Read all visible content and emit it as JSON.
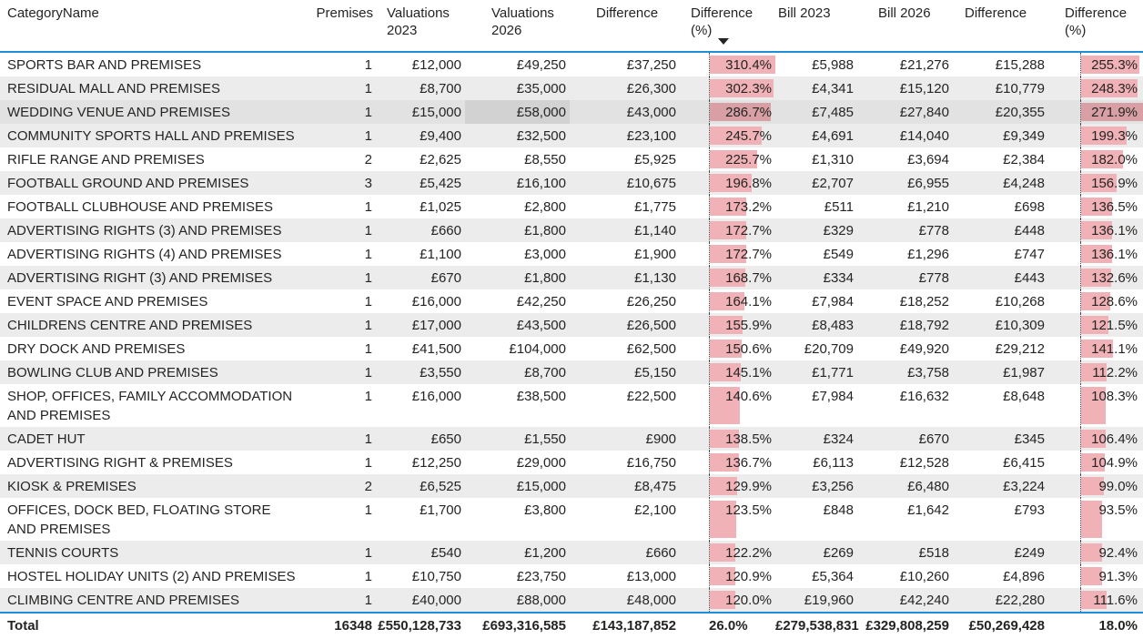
{
  "columns": [
    {
      "key": "category",
      "label": "CategoryName"
    },
    {
      "key": "premises",
      "label": "Premises"
    },
    {
      "key": "val2023",
      "label": "Valuations 2023"
    },
    {
      "key": "val2026",
      "label": "Valuations 2026"
    },
    {
      "key": "diff",
      "label": "Difference"
    },
    {
      "key": "diffPct",
      "label": "Difference (%)",
      "databar": true,
      "sorted": "descending"
    },
    {
      "key": "bill2023",
      "label": "Bill 2023"
    },
    {
      "key": "bill2026",
      "label": "Bill 2026"
    },
    {
      "key": "billDiff",
      "label": "Difference"
    },
    {
      "key": "billDiffPct",
      "label": "Difference (%)",
      "databar": true
    }
  ],
  "rows": [
    {
      "category": "SPORTS BAR AND PREMISES",
      "premises": "1",
      "val2023": "£12,000",
      "val2026": "£49,250",
      "diff": "£37,250",
      "diffPct": 310.4,
      "bill2023": "£5,988",
      "bill2026": "£21,276",
      "billDiff": "£15,288",
      "billDiffPct": 255.3
    },
    {
      "category": "RESIDUAL MALL AND PREMISES",
      "premises": "1",
      "val2023": "£8,700",
      "val2026": "£35,000",
      "diff": "£26,300",
      "diffPct": 302.3,
      "bill2023": "£4,341",
      "bill2026": "£15,120",
      "billDiff": "£10,779",
      "billDiffPct": 248.3
    },
    {
      "category": "WEDDING VENUE AND PREMISES",
      "premises": "1",
      "val2023": "£15,000",
      "val2026": "£58,000",
      "diff": "£43,000",
      "diffPct": 286.7,
      "bill2023": "£7,485",
      "bill2026": "£27,840",
      "billDiff": "£20,355",
      "billDiffPct": 271.9
    },
    {
      "category": "COMMUNITY SPORTS HALL AND PREMISES",
      "premises": "1",
      "val2023": "£9,400",
      "val2026": "£32,500",
      "diff": "£23,100",
      "diffPct": 245.7,
      "bill2023": "£4,691",
      "bill2026": "£14,040",
      "billDiff": "£9,349",
      "billDiffPct": 199.3
    },
    {
      "category": "RIFLE RANGE AND PREMISES",
      "premises": "2",
      "val2023": "£2,625",
      "val2026": "£8,550",
      "diff": "£5,925",
      "diffPct": 225.7,
      "bill2023": "£1,310",
      "bill2026": "£3,694",
      "billDiff": "£2,384",
      "billDiffPct": 182.0
    },
    {
      "category": "FOOTBALL GROUND AND PREMISES",
      "premises": "3",
      "val2023": "£5,425",
      "val2026": "£16,100",
      "diff": "£10,675",
      "diffPct": 196.8,
      "bill2023": "£2,707",
      "bill2026": "£6,955",
      "billDiff": "£4,248",
      "billDiffPct": 156.9
    },
    {
      "category": "FOOTBALL CLUBHOUSE AND PREMISES",
      "premises": "1",
      "val2023": "£1,025",
      "val2026": "£2,800",
      "diff": "£1,775",
      "diffPct": 173.2,
      "bill2023": "£511",
      "bill2026": "£1,210",
      "billDiff": "£698",
      "billDiffPct": 136.5
    },
    {
      "category": "ADVERTISING RIGHTS (3) AND PREMISES",
      "premises": "1",
      "val2023": "£660",
      "val2026": "£1,800",
      "diff": "£1,140",
      "diffPct": 172.7,
      "bill2023": "£329",
      "bill2026": "£778",
      "billDiff": "£448",
      "billDiffPct": 136.1
    },
    {
      "category": "ADVERTISING RIGHTS (4) AND PREMISES",
      "premises": "1",
      "val2023": "£1,100",
      "val2026": "£3,000",
      "diff": "£1,900",
      "diffPct": 172.7,
      "bill2023": "£549",
      "bill2026": "£1,296",
      "billDiff": "£747",
      "billDiffPct": 136.1
    },
    {
      "category": "ADVERTISING RIGHT (3) AND PREMISES",
      "premises": "1",
      "val2023": "£670",
      "val2026": "£1,800",
      "diff": "£1,130",
      "diffPct": 168.7,
      "bill2023": "£334",
      "bill2026": "£778",
      "billDiff": "£443",
      "billDiffPct": 132.6
    },
    {
      "category": "EVENT SPACE AND PREMISES",
      "premises": "1",
      "val2023": "£16,000",
      "val2026": "£42,250",
      "diff": "£26,250",
      "diffPct": 164.1,
      "bill2023": "£7,984",
      "bill2026": "£18,252",
      "billDiff": "£10,268",
      "billDiffPct": 128.6
    },
    {
      "category": "CHILDRENS CENTRE AND PREMISES",
      "premises": "1",
      "val2023": "£17,000",
      "val2026": "£43,500",
      "diff": "£26,500",
      "diffPct": 155.9,
      "bill2023": "£8,483",
      "bill2026": "£18,792",
      "billDiff": "£10,309",
      "billDiffPct": 121.5
    },
    {
      "category": "DRY DOCK AND PREMISES",
      "premises": "1",
      "val2023": "£41,500",
      "val2026": "£104,000",
      "diff": "£62,500",
      "diffPct": 150.6,
      "bill2023": "£20,709",
      "bill2026": "£49,920",
      "billDiff": "£29,212",
      "billDiffPct": 141.1
    },
    {
      "category": "BOWLING CLUB AND PREMISES",
      "premises": "1",
      "val2023": "£3,550",
      "val2026": "£8,700",
      "diff": "£5,150",
      "diffPct": 145.1,
      "bill2023": "£1,771",
      "bill2026": "£3,758",
      "billDiff": "£1,987",
      "billDiffPct": 112.2
    },
    {
      "category": "SHOP, OFFICES, FAMILY ACCOMMODATION AND PREMISES",
      "premises": "1",
      "val2023": "£16,000",
      "val2026": "£38,500",
      "diff": "£22,500",
      "diffPct": 140.6,
      "bill2023": "£7,984",
      "bill2026": "£16,632",
      "billDiff": "£8,648",
      "billDiffPct": 108.3
    },
    {
      "category": "CADET HUT",
      "premises": "1",
      "val2023": "£650",
      "val2026": "£1,550",
      "diff": "£900",
      "diffPct": 138.5,
      "bill2023": "£324",
      "bill2026": "£670",
      "billDiff": "£345",
      "billDiffPct": 106.4
    },
    {
      "category": "ADVERTISING RIGHT & PREMISES",
      "premises": "1",
      "val2023": "£12,250",
      "val2026": "£29,000",
      "diff": "£16,750",
      "diffPct": 136.7,
      "bill2023": "£6,113",
      "bill2026": "£12,528",
      "billDiff": "£6,415",
      "billDiffPct": 104.9
    },
    {
      "category": "KIOSK & PREMISES",
      "premises": "2",
      "val2023": "£6,525",
      "val2026": "£15,000",
      "diff": "£8,475",
      "diffPct": 129.9,
      "bill2023": "£3,256",
      "bill2026": "£6,480",
      "billDiff": "£3,224",
      "billDiffPct": 99.0
    },
    {
      "category": "OFFICES, DOCK BED, FLOATING STORE AND PREMISES",
      "premises": "1",
      "val2023": "£1,700",
      "val2026": "£3,800",
      "diff": "£2,100",
      "diffPct": 123.5,
      "bill2023": "£848",
      "bill2026": "£1,642",
      "billDiff": "£793",
      "billDiffPct": 93.5
    },
    {
      "category": "TENNIS COURTS",
      "premises": "1",
      "val2023": "£540",
      "val2026": "£1,200",
      "diff": "£660",
      "diffPct": 122.2,
      "bill2023": "£269",
      "bill2026": "£518",
      "billDiff": "£249",
      "billDiffPct": 92.4
    },
    {
      "category": "HOSTEL HOLIDAY UNITS (2) AND PREMISES",
      "premises": "1",
      "val2023": "£10,750",
      "val2026": "£23,750",
      "diff": "£13,000",
      "diffPct": 120.9,
      "bill2023": "£5,364",
      "bill2026": "£10,260",
      "billDiff": "£4,896",
      "billDiffPct": 91.3
    },
    {
      "category": "CLIMBING CENTRE AND PREMISES",
      "premises": "1",
      "val2023": "£40,000",
      "val2026": "£88,000",
      "diff": "£48,000",
      "diffPct": 120.0,
      "bill2023": "£19,960",
      "bill2026": "£42,240",
      "billDiff": "£22,280",
      "billDiffPct": 111.6
    }
  ],
  "total": {
    "category": "Total",
    "premises": "16348",
    "val2023": "£550,128,733",
    "val2026": "£693,316,585",
    "diff": "£143,187,852",
    "diffPct": 26.0,
    "bill2023": "£279,538,831",
    "bill2026": "£329,808,259",
    "billDiff": "£50,269,428",
    "billDiffPct": 18.0
  },
  "selection": {
    "row_index": 2,
    "cell_key": "val2026"
  },
  "colors": {
    "accent_line": "#1e8ed8",
    "databar": "#f0b2b6",
    "stripe": "#ececec",
    "highlight_row": "#e2e2e2",
    "selected_cell": "#d2d2d2",
    "text": "#252423"
  }
}
